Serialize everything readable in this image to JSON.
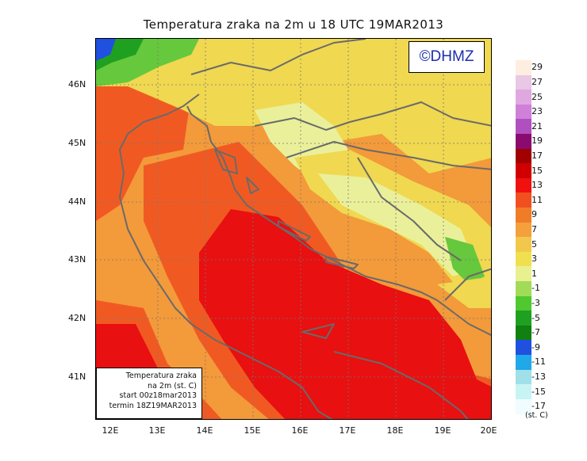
{
  "title": "Temperatura zraka na 2m u 18 UTC 19MAR2013",
  "logo_text": "©DHMZ",
  "info_lines": [
    "Temperatura zraka",
    "na 2m (st. C)",
    "start 00z18mar2013",
    "termin 18Z19MAR2013"
  ],
  "y_ticks": [
    "46N",
    "45N",
    "44N",
    "43N",
    "42N",
    "41N"
  ],
  "x_ticks": [
    "12E",
    "13E",
    "14E",
    "15E",
    "16E",
    "17E",
    "18E",
    "19E",
    "20E"
  ],
  "legend_levels": [
    "29",
    "27",
    "25",
    "23",
    "21",
    "19",
    "17",
    "15",
    "13",
    "11",
    "9",
    "7",
    "5",
    "3",
    "1",
    "-1",
    "-3",
    "-5",
    "-7",
    "-9",
    "-11",
    "-13",
    "-15",
    "-17"
  ],
  "legend_colors": [
    "#fdeee0",
    "#e8c8e4",
    "#e0a8e0",
    "#d080d8",
    "#b050c0",
    "#8a0a70",
    "#a00000",
    "#d00000",
    "#f01010",
    "#f05020",
    "#f07c28",
    "#f4a03c",
    "#f2c84c",
    "#f0e050",
    "#e8f090",
    "#a0dc58",
    "#50c830",
    "#20a020",
    "#108010",
    "#2050e0",
    "#20a8e8",
    "#a0e0e8",
    "#c8f4f4",
    "#f0fcff"
  ],
  "unit": "(st. C)",
  "map_colors": {
    "warmest": "#e81010",
    "warm": "#f05a22",
    "mild": "#f39a3a",
    "yellow": "#f0d850",
    "pale": "#eaf09a",
    "green": "#66c83c",
    "darkgreen": "#20a020",
    "blue": "#2050e0",
    "coast": "#6a6a6a"
  }
}
